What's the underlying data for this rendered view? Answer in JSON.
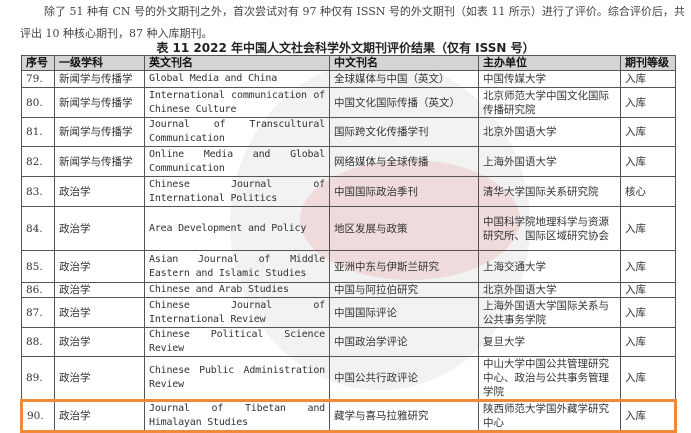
{
  "paragraph": {
    "line1": "除了 51 种有 CN 号的外文期刊之外，首次尝试对有 97 种仅有 ISSN 号的外文期刊（如表 11 所示）进行了评价。综合评价后，共",
    "line2": "评出 10 种核心期刊，87 种入库期刊。"
  },
  "table": {
    "title": "表 11 2022 年中国人文社会科学外文期刊评价结果（仅有 ISSN 号）",
    "headers": [
      "序号",
      "一级学科",
      "英文刊名",
      "中文刊名",
      "主办单位",
      "期刊等级"
    ],
    "rows": [
      [
        "79.",
        "新闻学与传播学",
        "Global Media and China",
        "全球媒体与中国（英文）",
        "中国传媒大学",
        "入库"
      ],
      [
        "80.",
        "新闻学与传播学",
        "International communication of Chinese Culture",
        "中国文化国际传播（英文）",
        "北京师范大学中国文化国际传播研究院",
        "入库"
      ],
      [
        "81.",
        "新闻学与传播学",
        "Journal of Transcultural Communication",
        "国际跨文化传播学刊",
        "北京外国语大学",
        "入库"
      ],
      [
        "82.",
        "新闻学与传播学",
        "Online Media and Global Communication",
        "网络媒体与全球传播",
        "上海外国语大学",
        "入库"
      ],
      [
        "83.",
        "政治学",
        "Chinese Journal of International Politics",
        "中国国际政治季刊",
        "清华大学国际关系研究院",
        "核心"
      ],
      [
        "84.",
        "政治学",
        "Area Development and Policy",
        "地区发展与政策",
        "中国科学院地理科学与资源研究所、国际区域研究协会",
        "入库"
      ],
      [
        "85.",
        "政治学",
        "Asian Journal of Middle Eastern and Islamic Studies",
        "亚洲中东与伊斯兰研究",
        "上海交通大学",
        "入库"
      ],
      [
        "86.",
        "政治学",
        "Chinese and Arab Studies",
        "中国与阿拉伯研究",
        "北京外国语大学",
        "入库"
      ],
      [
        "87.",
        "政治学",
        "Chinese Journal of International Review",
        "中国国际评论",
        "上海外国语大学国际关系与公共事务学院",
        "入库"
      ],
      [
        "88.",
        "政治学",
        "Chinese Political Science Review",
        "中国政治学评论",
        "复旦大学",
        "入库"
      ],
      [
        "89.",
        "政治学",
        "Chinese Public Administration Review",
        "中国公共行政评论",
        "中山大学中国公共管理研究中心、政治与公共事务管理学院",
        "入库"
      ],
      [
        "90.",
        "政治学",
        "Journal of Tibetan and Himalayan Studies",
        "藏学与喜马拉雅研究",
        "陕西师范大学国外藏学研究中心",
        "入库"
      ]
    ],
    "highlighted_row": "90.",
    "highlight_color": "#f08a3a"
  }
}
